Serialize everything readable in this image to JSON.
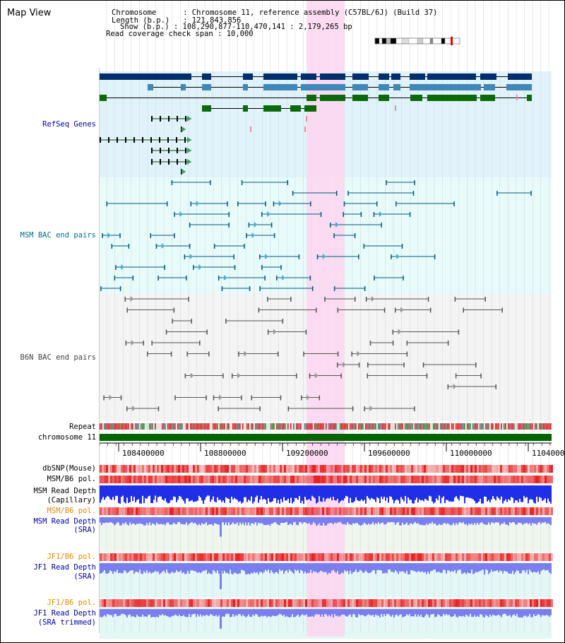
{
  "title": "Map View",
  "info": {
    "chromosome_key": "Chromosome",
    "chromosome_val": "Chromosome 11, reference assembly (C57BL/6J) (Build 37)",
    "length_key": "Length (b.p.)",
    "length_val": "121,843,856",
    "show_key": "Show (b.p.)",
    "show_val": "108,290,877-110,470,141 : 2,179,265 bp",
    "span_key": "Read coverage check span",
    "span_val": "10,000"
  },
  "tracks": {
    "refseq": "RefSeq Genes",
    "msm_bac": "MSM BAC end pairs",
    "b6n_bac": "B6N BAC end pairs",
    "repeat": "Repeat",
    "chromosome": "chromosome 11",
    "dbsnp": "dbSNP(Mouse)",
    "msm_b6_pol_1": "MSM/B6 pol.",
    "msm_depth_cap_1": "MSM Read Depth",
    "msm_depth_cap_2": "(Capillary)",
    "msm_b6_pol_2": "MSM/B6 pol.",
    "msm_depth_sra_1": "MSM Read Depth",
    "msm_depth_sra_2": "(SRA)",
    "jf1_pol_1": "JF1/B6 pol.",
    "jf1_depth_1": "JF1 Read Depth",
    "jf1_depth_2": "(SRA)",
    "jf1_pol_2": "JF1/B6 pol.",
    "jf1_trim_1": "JF1 Read Depth",
    "jf1_trim_2": "(SRA trimmed)"
  },
  "axis": {
    "ticks": [
      "108400000",
      "108800000",
      "109200000",
      "109600000",
      "110000000",
      "110400000"
    ]
  },
  "colors": {
    "refseq_bg": "#e0f3fb",
    "msm_bg": "#e8fbfb",
    "b6n_bg": "#f4f4f4",
    "highlight": "#fbd6f0",
    "gene_dark": "#002f6c",
    "gene_mid": "#3f88b8",
    "gene_green": "#0a6a0a",
    "msm_blue_label": "#007080",
    "refseq_label": "#0000a0",
    "orange_label": "#e08a00",
    "depth_blue": "#1f2fe8",
    "depth_light": "#7a7ff0"
  }
}
